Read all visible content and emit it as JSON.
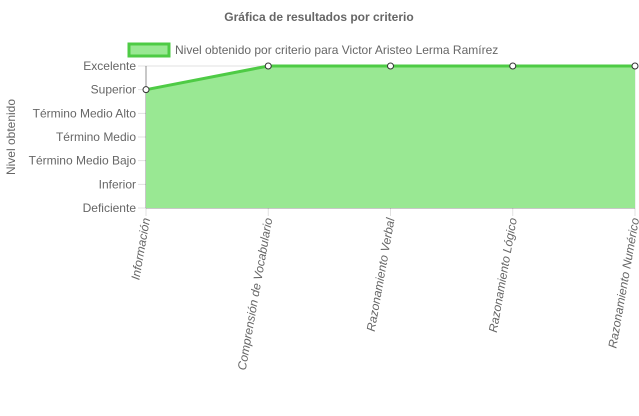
{
  "chart_data": {
    "type": "area",
    "title": "Gráfica de resultados por criterio",
    "ylabel": "Nivel obtenido",
    "xlabel": "",
    "categories": [
      "Información",
      "Comprensión de Vocabulario",
      "Razonamiento Verbal",
      "Razonamiento Lógico",
      "Razonamiento Numérico"
    ],
    "y_levels": [
      "Deficiente",
      "Inferior",
      "Término Medio Bajo",
      "Término Medio",
      "Término Medio Alto",
      "Superior",
      "Excelente"
    ],
    "ylim": [
      1,
      7
    ],
    "series": [
      {
        "name": "Nivel obtenido por criterio para Victor Aristeo Lerma Ramírez",
        "values": [
          6,
          7,
          7,
          7,
          7
        ],
        "value_labels": [
          "Superior",
          "Excelente",
          "Excelente",
          "Excelente",
          "Excelente"
        ]
      }
    ],
    "legend_position": "top",
    "grid": true,
    "colors": {
      "fill": "#99e893",
      "line": "#4ecb45",
      "grid": "rgba(0,0,0,0.12)",
      "text": "#666666",
      "point_fill": "#ffffff",
      "point_stroke": "#333333"
    }
  }
}
